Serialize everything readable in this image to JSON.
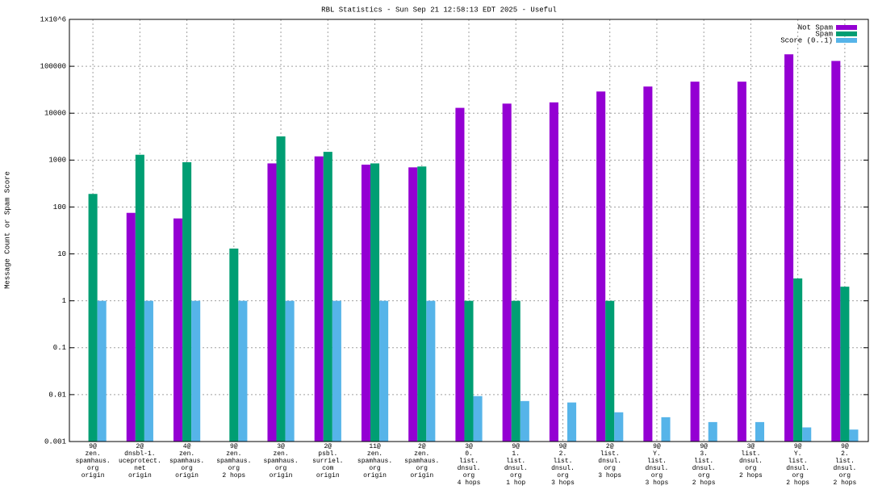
{
  "chart_data": {
    "type": "bar",
    "title": "RBL Statistics - Sun Sep 21 12:58:13 EDT 2025 - Useful",
    "y_label": "Message Count or Spam Score",
    "log_y": true,
    "grid": true,
    "legend": "top-right",
    "categories": [
      "9@\nzen.\nspamhaus.\norg\norigin",
      "2@\ndnsbl-1.\nuceprotect.\nnet\norigin",
      "4@\nzen.\nspamhaus.\norg\norigin",
      "9@\nzen.\nspamhaus.\norg\n2 hops",
      "3@\nzen.\nspamhaus.\norg\norigin",
      "2@\npsbl.\nsurriel.\ncom\norigin",
      "11@\nzen.\nspamhaus.\norg\norigin",
      "2@\nzen.\nspamhaus.\norg\norigin",
      "3@\n0.\nlist.\ndnsul.\norg\n4 hops",
      "9@\n1.\nlist.\ndnsul.\norg\n1 hop",
      "9@\n2.\nlist.\ndnsul.\norg\n3 hops",
      "2@\nlist.\ndnsul.\norg\n3 hops",
      "9@\nY.\nlist.\ndnsul.\norg\n3 hops",
      "9@\n3.\nlist.\ndnsul.\norg\n2 hops",
      "3@\nlist.\ndnsul.\norg\n2 hops",
      "9@\nY.\nlist.\ndnsul.\norg\n2 hops",
      "9@\n2.\nlist.\ndnsul.\norg\n2 hops"
    ],
    "series": [
      {
        "name": "Not Spam",
        "color": "#9400d3",
        "values": [
          null,
          75,
          57,
          null,
          850,
          1200,
          800,
          700,
          13000,
          16000,
          17000,
          29000,
          37000,
          47000,
          47000,
          180000,
          130000
        ]
      },
      {
        "name": "Spam",
        "color": "#009e73",
        "values": [
          190,
          1300,
          900,
          13,
          3200,
          1500,
          850,
          730,
          1,
          1,
          null,
          1,
          null,
          null,
          null,
          3,
          2
        ]
      },
      {
        "name": "Score (0..1)",
        "color": "#56b4e9",
        "values": [
          1,
          1,
          1,
          1,
          1,
          1,
          1,
          1,
          0.0093,
          0.0073,
          0.0068,
          0.0042,
          0.0033,
          0.0026,
          0.0026,
          0.002,
          0.0018
        ]
      }
    ],
    "ylim": [
      0.001,
      1000000
    ],
    "yticks": [
      0.001,
      0.01,
      0.1,
      1,
      10,
      100,
      1000,
      10000,
      100000,
      {
        "value": 1000000,
        "label": "1x10^6"
      }
    ]
  }
}
